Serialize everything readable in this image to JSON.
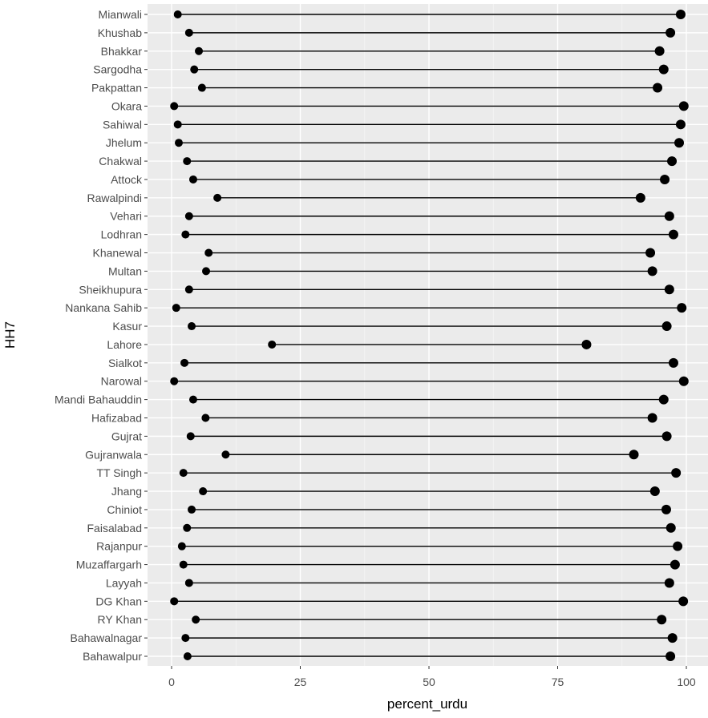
{
  "chart_data": {
    "type": "dumbbell",
    "title": "",
    "xlabel": "percent_urdu",
    "ylabel": "HH7",
    "xlim": [
      0,
      100
    ],
    "x_ticks": [
      "0",
      "25",
      "50",
      "75",
      "100"
    ],
    "x_tick_values": [
      0,
      25,
      50,
      75,
      100
    ],
    "grid": true,
    "background": "#ebebeb",
    "point_color": "#000000",
    "categories": [
      "Mianwali",
      "Khushab",
      "Bhakkar",
      "Sargodha",
      "Pakpattan",
      "Okara",
      "Sahiwal",
      "Jhelum",
      "Chakwal",
      "Attock",
      "Rawalpindi",
      "Vehari",
      "Lodhran",
      "Khanewal",
      "Multan",
      "Sheikhupura",
      "Nankana Sahib",
      "Kasur",
      "Lahore",
      "Sialkot",
      "Narowal",
      "Mandi Bahauddin",
      "Hafizabad",
      "Gujrat",
      "Gujranwala",
      "TT Singh",
      "Jhang",
      "Chiniot",
      "Faisalabad",
      "Rajanpur",
      "Muzaffargarh",
      "Layyah",
      "DG Khan",
      "RY Khan",
      "Bahawalnagar",
      "Bahawalpur"
    ],
    "low": [
      1.2,
      3.4,
      5.3,
      4.4,
      5.9,
      0.5,
      1.2,
      1.4,
      3.0,
      4.2,
      8.9,
      3.4,
      2.7,
      7.2,
      6.7,
      3.4,
      0.9,
      3.9,
      19.5,
      2.5,
      0.5,
      4.2,
      6.6,
      3.7,
      10.5,
      2.3,
      6.1,
      3.9,
      3.0,
      2.0,
      2.3,
      3.4,
      0.5,
      4.7,
      2.7,
      3.1
    ],
    "high": [
      98.9,
      96.9,
      94.8,
      95.6,
      94.4,
      99.5,
      98.9,
      98.6,
      97.2,
      95.8,
      91.1,
      96.7,
      97.5,
      93.0,
      93.4,
      96.7,
      99.1,
      96.2,
      80.6,
      97.5,
      99.5,
      95.6,
      93.4,
      96.2,
      89.8,
      98.0,
      93.9,
      96.1,
      97.0,
      98.3,
      97.8,
      96.7,
      99.4,
      95.2,
      97.3,
      96.9
    ]
  }
}
